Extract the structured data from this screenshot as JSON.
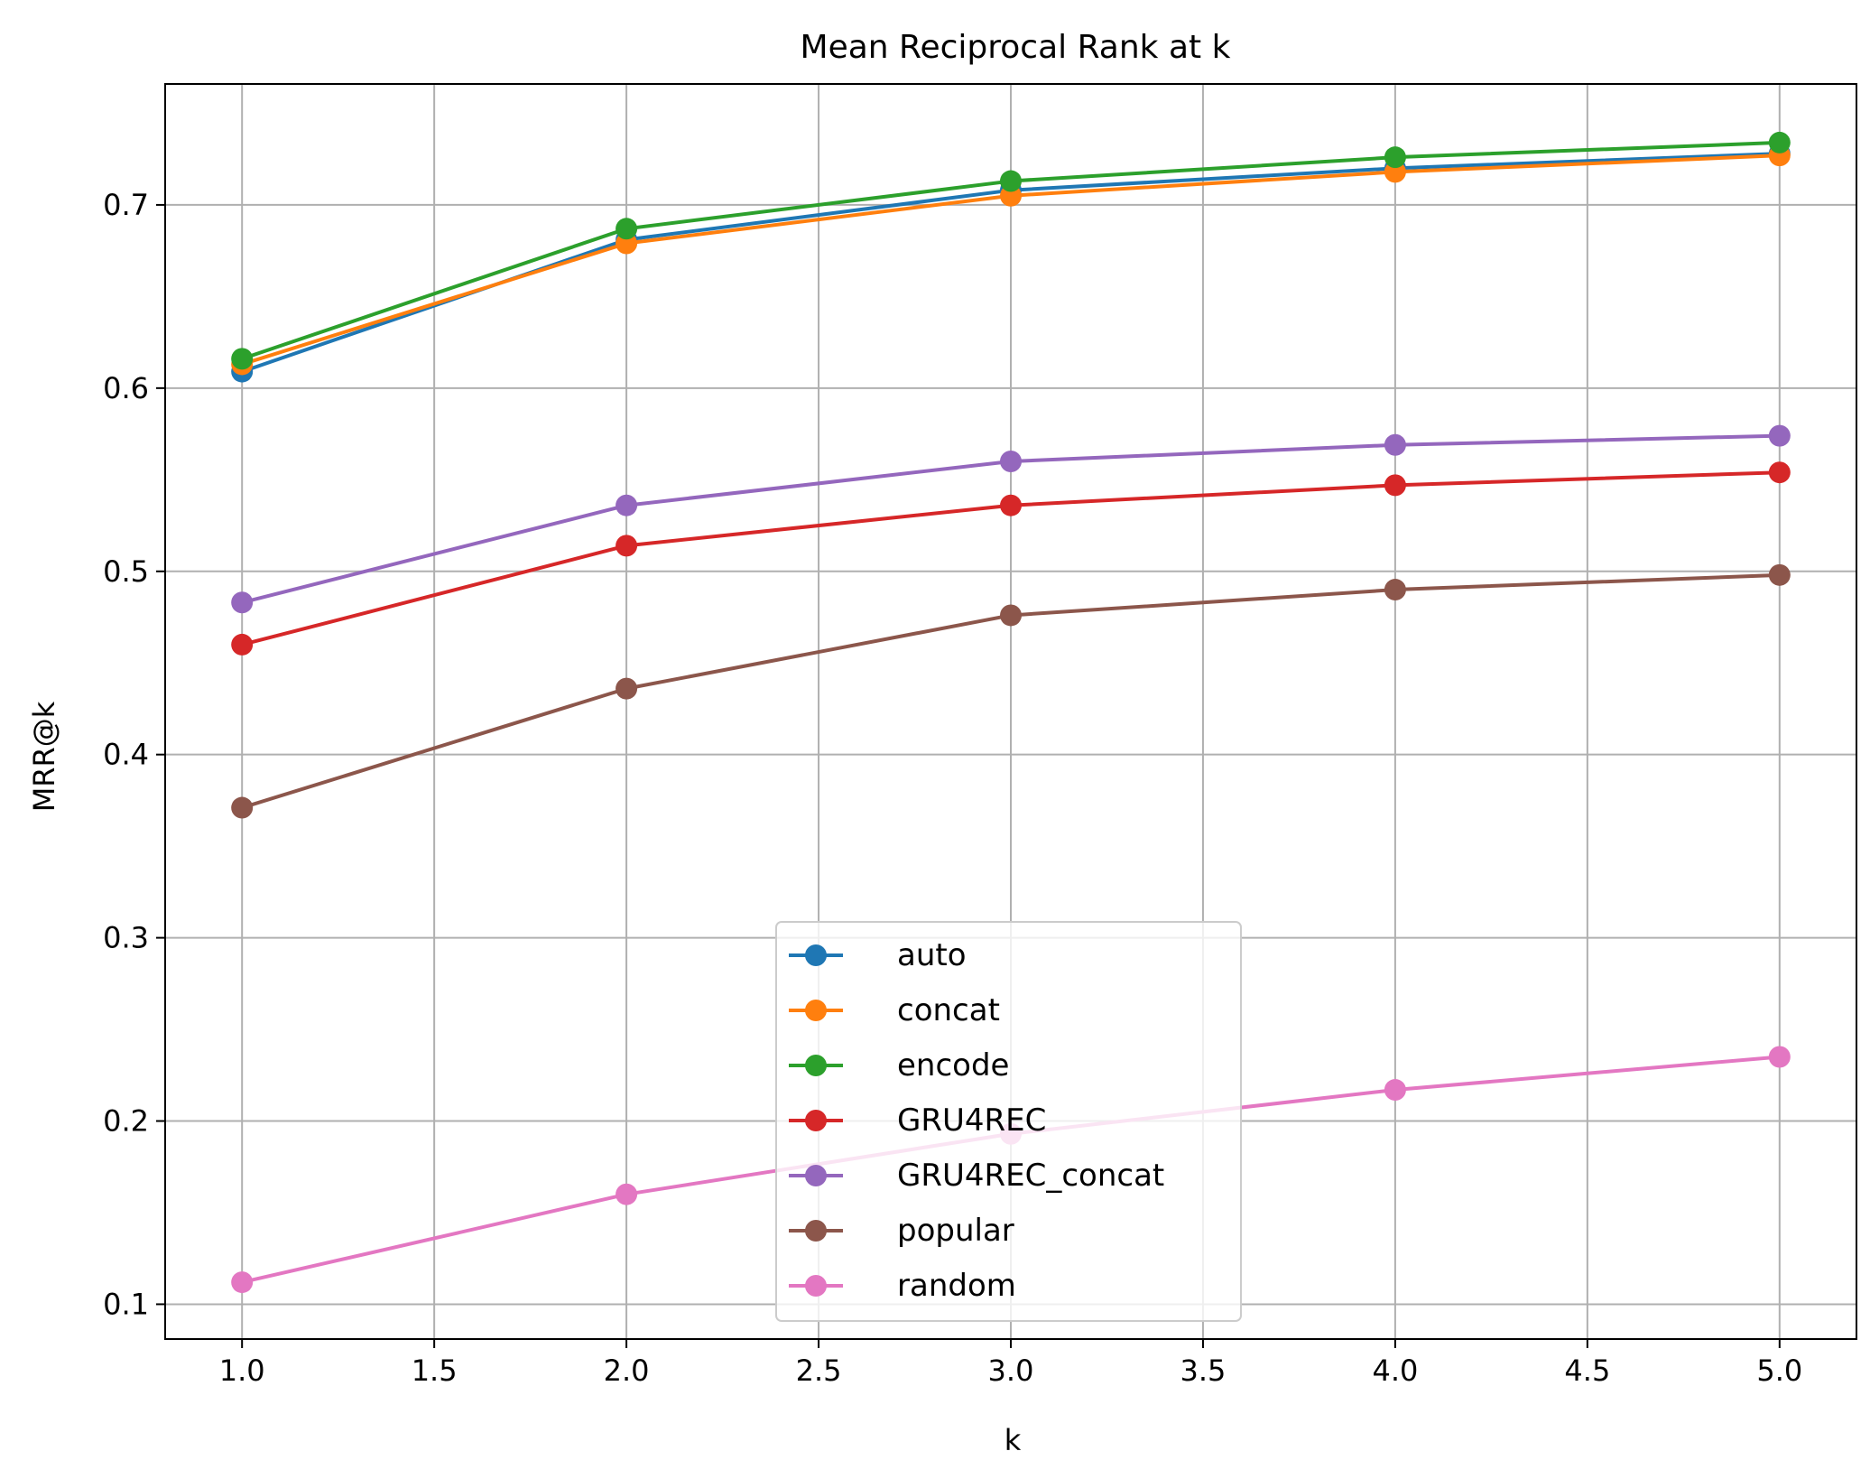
{
  "chart_data": {
    "type": "line",
    "title": "Mean Reciprocal Rank at k",
    "xlabel": "k",
    "ylabel": "MRR@k",
    "x": [
      1,
      2,
      3,
      4,
      5
    ],
    "xlim": [
      0.8,
      5.2
    ],
    "ylim": [
      0.081,
      0.766
    ],
    "xticks": [
      1.0,
      1.5,
      2.0,
      2.5,
      3.0,
      3.5,
      4.0,
      4.5,
      5.0
    ],
    "xtick_labels": [
      "1.0",
      "1.5",
      "2.0",
      "2.5",
      "3.0",
      "3.5",
      "4.0",
      "4.5",
      "5.0"
    ],
    "yticks": [
      0.1,
      0.2,
      0.3,
      0.4,
      0.5,
      0.6,
      0.7
    ],
    "ytick_labels": [
      "0.1",
      "0.2",
      "0.3",
      "0.4",
      "0.5",
      "0.6",
      "0.7"
    ],
    "grid": true,
    "legend_position": "lower-center",
    "markers": "circle",
    "series": [
      {
        "name": "auto",
        "color": "#1f77b4",
        "values": [
          0.609,
          0.681,
          0.708,
          0.72,
          0.728
        ]
      },
      {
        "name": "concat",
        "color": "#ff7f0e",
        "values": [
          0.613,
          0.679,
          0.705,
          0.718,
          0.727
        ]
      },
      {
        "name": "encode",
        "color": "#2ca02c",
        "values": [
          0.616,
          0.687,
          0.713,
          0.726,
          0.734
        ]
      },
      {
        "name": "GRU4REC",
        "color": "#d62728",
        "values": [
          0.46,
          0.514,
          0.536,
          0.547,
          0.554
        ]
      },
      {
        "name": "GRU4REC_concat",
        "color": "#9467bd",
        "values": [
          0.483,
          0.536,
          0.56,
          0.569,
          0.574
        ]
      },
      {
        "name": "popular",
        "color": "#8c564b",
        "values": [
          0.371,
          0.436,
          0.476,
          0.49,
          0.498
        ]
      },
      {
        "name": "random",
        "color": "#e377c2",
        "values": [
          0.112,
          0.16,
          0.193,
          0.217,
          0.235
        ]
      }
    ]
  }
}
